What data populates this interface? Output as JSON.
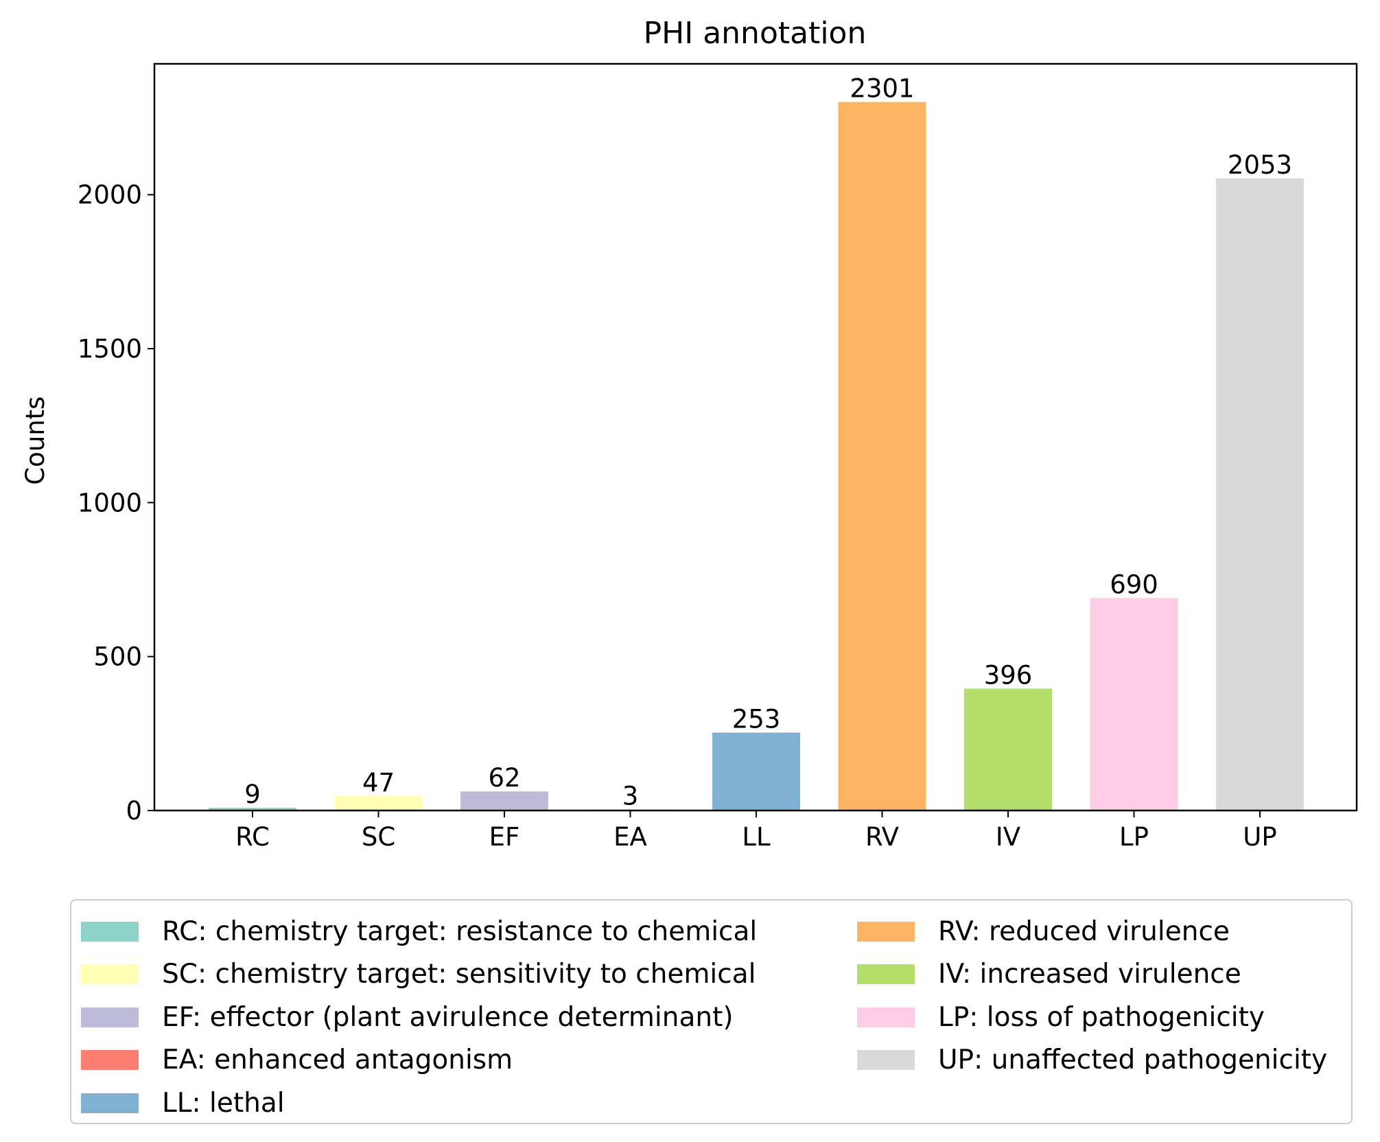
{
  "chart_data": {
    "type": "bar",
    "title": "PHI annotation",
    "xlabel": "",
    "ylabel": "Counts",
    "ylim": [
      0,
      2425
    ],
    "yticks": [
      0,
      500,
      1000,
      1500,
      2000
    ],
    "grid": false,
    "categories": [
      "RC",
      "SC",
      "EF",
      "EA",
      "LL",
      "RV",
      "IV",
      "LP",
      "UP"
    ],
    "values": [
      9,
      47,
      62,
      3,
      253,
      2301,
      396,
      690,
      2053
    ],
    "data_labels": [
      "9",
      "47",
      "62",
      "3",
      "253",
      "2301",
      "396",
      "690",
      "2053"
    ],
    "colors": [
      "#8dd3c7",
      "#ffffb3",
      "#bebada",
      "#fb8072",
      "#80b1d3",
      "#fdb462",
      "#b3de69",
      "#fccde5",
      "#d9d9d9"
    ],
    "legend": {
      "placement": "below",
      "columns": 2,
      "entries": [
        "RC: chemistry target: resistance to chemical",
        "SC: chemistry target: sensitivity to chemical",
        "EF: effector (plant avirulence determinant)",
        "EA: enhanced antagonism",
        "LL: lethal",
        "RV: reduced virulence",
        "IV: increased virulence",
        "LP: loss of pathogenicity",
        "UP: unaffected pathogenicity"
      ]
    }
  }
}
